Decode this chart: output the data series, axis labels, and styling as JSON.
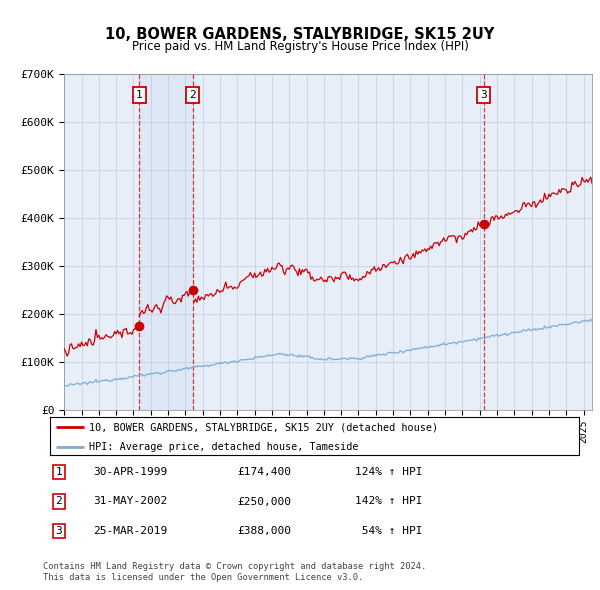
{
  "title": "10, BOWER GARDENS, STALYBRIDGE, SK15 2UY",
  "subtitle": "Price paid vs. HM Land Registry's House Price Index (HPI)",
  "legend_line1": "10, BOWER GARDENS, STALYBRIDGE, SK15 2UY (detached house)",
  "legend_line2": "HPI: Average price, detached house, Tameside",
  "footer1": "Contains HM Land Registry data © Crown copyright and database right 2024.",
  "footer2": "This data is licensed under the Open Government Licence v3.0.",
  "sales": [
    {
      "num": 1,
      "date": "30-APR-1999",
      "price": 174400,
      "pct": "124%",
      "year": 1999.33
    },
    {
      "num": 2,
      "date": "31-MAY-2002",
      "price": 250000,
      "pct": "142%",
      "year": 2002.42
    },
    {
      "num": 3,
      "date": "25-MAR-2019",
      "price": 388000,
      "pct": "54%",
      "year": 2019.23
    }
  ],
  "background_color": "#e8eef8",
  "grid_color": "#c0cce0",
  "red_color": "#cc0000",
  "blue_color": "#7dadd4",
  "ylim": [
    0,
    700000
  ],
  "yticks": [
    0,
    100000,
    200000,
    300000,
    400000,
    500000,
    600000,
    700000
  ],
  "xlim_start": 1995.0,
  "xlim_end": 2025.5
}
